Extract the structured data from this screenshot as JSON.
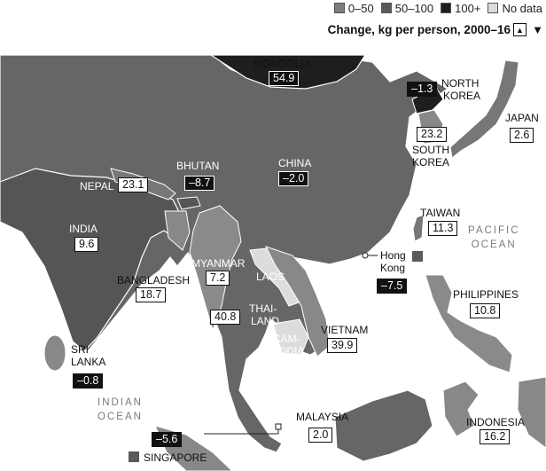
{
  "legend": {
    "items": [
      {
        "label": "0–50",
        "color": "#7d7d7d"
      },
      {
        "label": "50–100",
        "color": "#5a5a5a"
      },
      {
        "label": "100+",
        "color": "#1e1e1e"
      },
      {
        "label": "No data",
        "color": "#dcdcdc"
      }
    ]
  },
  "subtitle": "Change, kg per person, 2000–16",
  "sort_controls": {
    "up": "▲",
    "down": "▼"
  },
  "oceans": {
    "pacific_1": "PACIFIC",
    "pacific_2": "OCEAN",
    "indian_1": "INDIAN",
    "indian_2": "OCEAN"
  },
  "countries": {
    "mongolia": {
      "name": "MONGOLIA",
      "value": "54.9"
    },
    "north_korea": {
      "name1": "NORTH",
      "name2": "KOREA",
      "value": "–1.3"
    },
    "south_korea": {
      "name1": "SOUTH",
      "name2": "KOREA",
      "value": "23.2"
    },
    "japan": {
      "name": "JAPAN",
      "value": "2.6"
    },
    "china": {
      "name": "CHINA",
      "value": "–2.0"
    },
    "bhutan": {
      "name": "BHUTAN",
      "value": "–8.7"
    },
    "nepal": {
      "name": "NEPAL",
      "value": "23.1"
    },
    "india": {
      "name": "INDIA",
      "value": "9.6"
    },
    "taiwan": {
      "name": "TAIWAN",
      "value": "11.3"
    },
    "hong_kong": {
      "name1": "Hong",
      "name2": "Kong",
      "value": "–7.5"
    },
    "bangladesh": {
      "name": "BANGLADESH",
      "value": "18.7"
    },
    "myanmar": {
      "name": "MYANMAR",
      "value": "7.2"
    },
    "laos": {
      "name": "LAOS"
    },
    "thailand": {
      "name1": "THAI-",
      "name2": "LAND",
      "value": "40.8"
    },
    "cambodia": {
      "name1": "CAM-",
      "name2": "BODIA"
    },
    "vietnam": {
      "name": "VIETNAM",
      "value": "39.9"
    },
    "philippines": {
      "name": "PHILIPPINES",
      "value": "10.8"
    },
    "sri_lanka": {
      "name1": "SRI",
      "name2": "LANKA",
      "value": "–0.8"
    },
    "malaysia": {
      "name": "MALAYSIA",
      "value": "2.0"
    },
    "indonesia": {
      "name": "INDONESIA",
      "value": "16.2"
    },
    "singapore": {
      "name": "SINGAPORE",
      "value": "–5.6"
    }
  }
}
